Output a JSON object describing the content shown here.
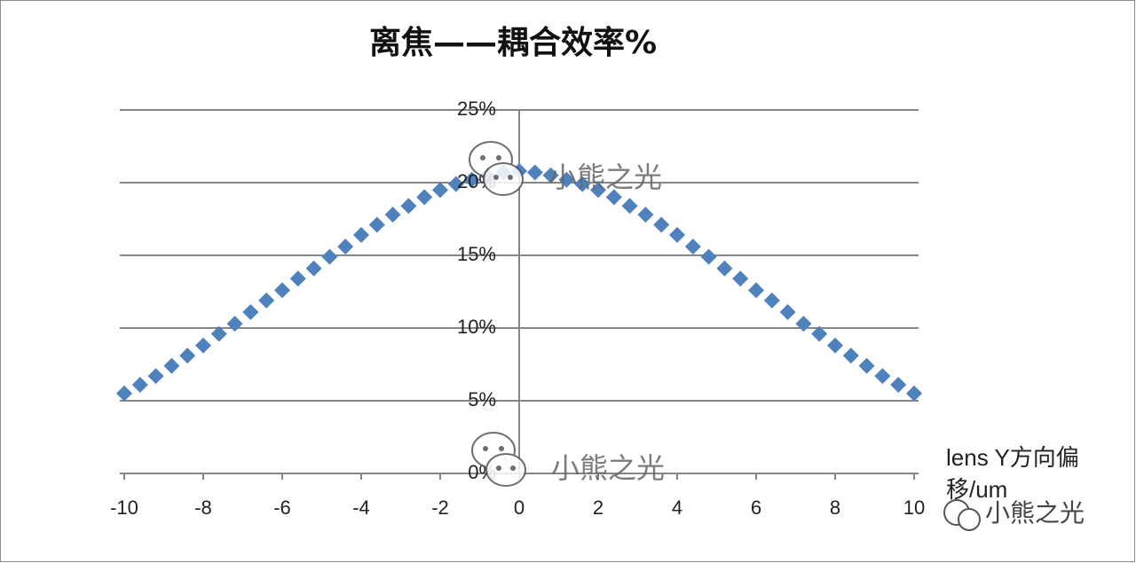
{
  "chart_data": {
    "type": "scatter",
    "title": "离焦——耦合效率%",
    "x_label": "lens Y方向偏移/um",
    "watermark": "小熊之光",
    "x": [
      -10,
      -9.6,
      -9.2,
      -8.8,
      -8.4,
      -8,
      -7.6,
      -7.2,
      -6.8,
      -6.4,
      -6,
      -5.6,
      -5.2,
      -4.8,
      -4.4,
      -4,
      -3.6,
      -3.2,
      -2.8,
      -2.4,
      -2,
      -1.6,
      -1.2,
      -0.8,
      -0.4,
      0,
      0.4,
      0.8,
      1.2,
      1.6,
      2,
      2.4,
      2.8,
      3.2,
      3.6,
      4,
      4.4,
      4.8,
      5.2,
      5.6,
      6,
      6.4,
      6.8,
      7.2,
      7.6,
      8,
      8.4,
      8.8,
      9.2,
      9.6,
      10
    ],
    "series": [
      {
        "color": "#4f81bd",
        "values": [
          5.5,
          6.1,
          6.7,
          7.4,
          8.1,
          8.8,
          9.6,
          10.3,
          11.1,
          11.9,
          12.6,
          13.4,
          14.1,
          14.9,
          15.6,
          16.4,
          17.1,
          17.8,
          18.4,
          19.0,
          19.5,
          19.9,
          20.2,
          20.5,
          20.7,
          20.8,
          20.7,
          20.5,
          20.2,
          19.9,
          19.5,
          19.0,
          18.4,
          17.8,
          17.1,
          16.4,
          15.6,
          14.9,
          14.1,
          13.4,
          12.6,
          11.9,
          11.1,
          10.3,
          9.6,
          8.8,
          8.1,
          7.4,
          6.7,
          6.1,
          5.5
        ]
      }
    ],
    "xlim": [
      -10,
      10
    ],
    "xticks": [
      -10,
      -8,
      -6,
      -4,
      -2,
      0,
      2,
      4,
      6,
      8,
      10
    ],
    "ylim": [
      0,
      25
    ],
    "yticks": [
      {
        "value": 0,
        "label": "0%"
      },
      {
        "value": 5,
        "label": "5%"
      },
      {
        "value": 10,
        "label": "10%"
      },
      {
        "value": 15,
        "label": "15%"
      },
      {
        "value": 20,
        "label": "20%"
      },
      {
        "value": 25,
        "label": "25%"
      }
    ],
    "grid": true
  }
}
